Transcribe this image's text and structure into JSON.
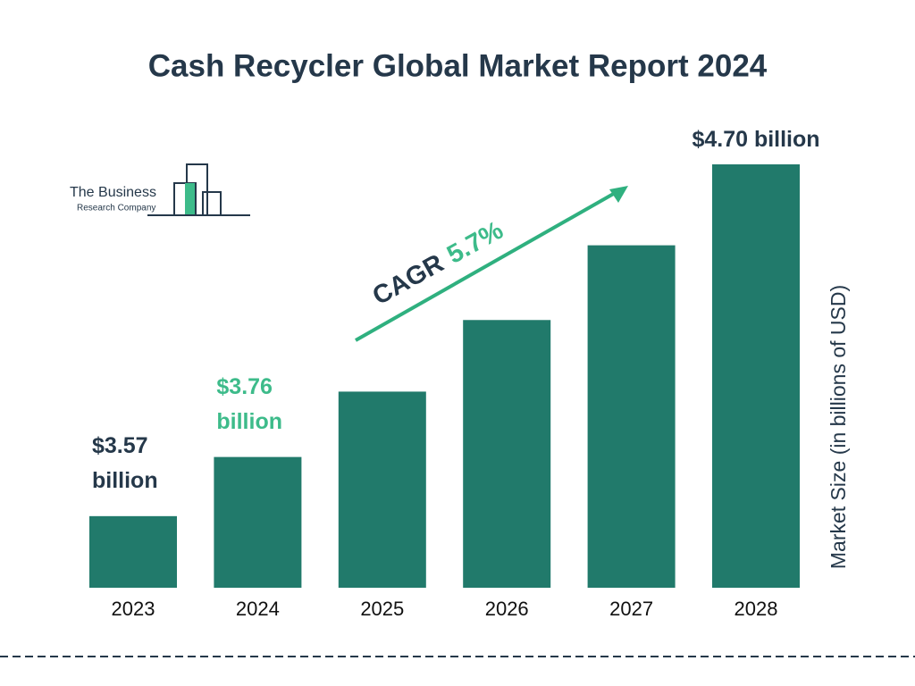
{
  "chart_data": {
    "type": "bar",
    "title": "Cash Recycler Global Market Report 2024",
    "categories": [
      "2023",
      "2024",
      "2025",
      "2026",
      "2027",
      "2028"
    ],
    "values": [
      3.57,
      3.76,
      3.97,
      4.2,
      4.44,
      4.7
    ],
    "value_labels": [
      "$3.57 billion",
      "$3.76 billion",
      null,
      null,
      null,
      "$4.70 billion"
    ],
    "color": "#217a6b",
    "ylim": [
      3.34,
      4.7
    ],
    "y_label": "Market Size (in billions of USD)",
    "annotations": {
      "cagr_label": "CAGR",
      "cagr_value": "5.7%"
    }
  },
  "logo": {
    "name": "The Business",
    "subname": "Research Company"
  }
}
